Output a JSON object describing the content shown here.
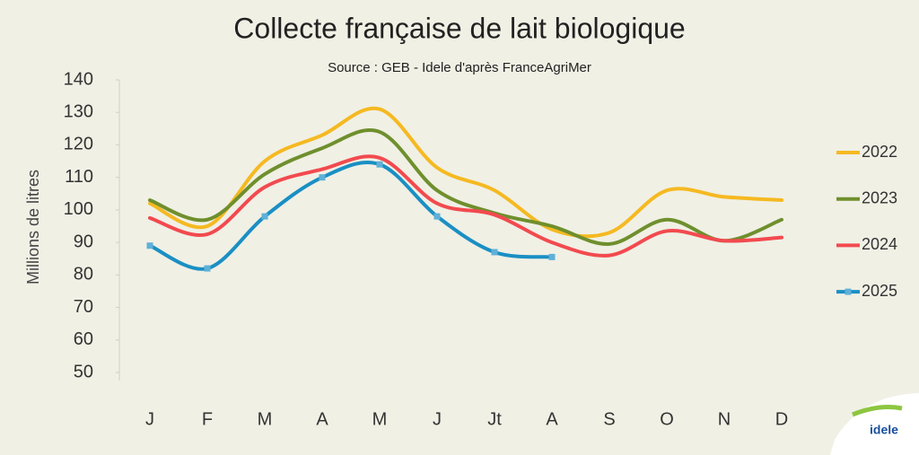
{
  "chart_data": {
    "type": "line",
    "title": "Collecte française de lait biologique",
    "subtitle": "Source : GEB - Idele d'après FranceAgriMer",
    "y_label": "Millions de litres",
    "categories": [
      "J",
      "F",
      "M",
      "A",
      "M",
      "J",
      "Jt",
      "A",
      "S",
      "O",
      "N",
      "D"
    ],
    "series": [
      {
        "name": "2022",
        "color": "#f5b921",
        "values": [
          102,
          95,
          115,
          123,
          131,
          113,
          106,
          94,
          93,
          106,
          104,
          103
        ]
      },
      {
        "name": "2023",
        "color": "#6f8f2d",
        "values": [
          103,
          97,
          111,
          119,
          124,
          106,
          99,
          95,
          89.5,
          97,
          90.5,
          97
        ]
      },
      {
        "name": "2024",
        "color": "#f24a4f",
        "values": [
          97.5,
          92.5,
          107,
          112.5,
          116,
          102,
          98.5,
          90,
          86,
          93.5,
          90.5,
          91.5
        ]
      },
      {
        "name": "2025",
        "color": "#1a8fc4",
        "markers": true,
        "values": [
          89,
          82,
          98,
          110,
          114,
          98,
          87,
          85.5,
          null,
          null,
          null,
          null
        ]
      }
    ],
    "ylim": [
      50,
      140
    ],
    "yticks": [
      50,
      60,
      70,
      80,
      90,
      100,
      110,
      120,
      130,
      140
    ],
    "grid": false,
    "legend": "right"
  },
  "logo": "idele"
}
